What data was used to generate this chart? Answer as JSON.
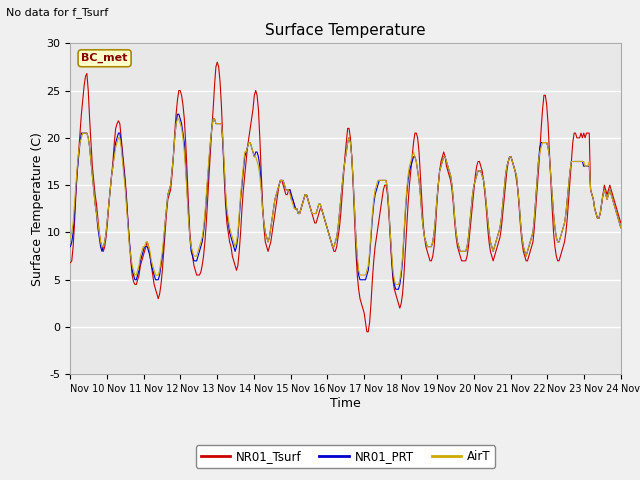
{
  "title": "Surface Temperature",
  "xlabel": "Time",
  "ylabel": "Surface Temperature (C)",
  "top_left_text": "No data for f_Tsurf",
  "box_label": "BC_met",
  "ylim": [
    -5,
    30
  ],
  "yticks": [
    -5,
    0,
    5,
    10,
    15,
    20,
    25,
    30
  ],
  "legend_labels": [
    "NR01_Tsurf",
    "NR01_PRT",
    "AirT"
  ],
  "legend_colors": [
    "#cc0000",
    "#0000cc",
    "#ccaa00"
  ],
  "background_color": "#e8e8e8",
  "grid_color": "#ffffff",
  "line_width": 0.8,
  "NR01_Tsurf": [
    6.8,
    7.0,
    8.5,
    11.0,
    14.0,
    16.5,
    18.5,
    20.5,
    22.5,
    24.0,
    25.5,
    26.5,
    26.8,
    25.0,
    22.0,
    19.5,
    17.0,
    15.5,
    14.0,
    13.0,
    11.5,
    10.0,
    9.0,
    8.5,
    8.0,
    8.5,
    9.5,
    11.0,
    13.0,
    14.5,
    16.0,
    17.5,
    19.5,
    21.0,
    21.5,
    21.8,
    21.5,
    20.0,
    18.5,
    17.0,
    15.5,
    13.5,
    11.0,
    9.0,
    7.0,
    5.5,
    4.8,
    4.5,
    4.5,
    5.0,
    5.5,
    6.5,
    7.0,
    7.5,
    8.0,
    8.5,
    9.0,
    8.5,
    7.5,
    6.5,
    5.5,
    4.5,
    4.0,
    3.5,
    3.0,
    3.5,
    4.5,
    6.0,
    8.0,
    10.0,
    12.0,
    13.5,
    14.0,
    14.5,
    16.0,
    18.0,
    20.5,
    22.5,
    24.0,
    25.0,
    25.0,
    24.5,
    23.5,
    22.0,
    19.5,
    16.5,
    13.0,
    10.0,
    8.5,
    7.5,
    6.5,
    6.0,
    5.5,
    5.5,
    5.5,
    5.8,
    6.5,
    7.5,
    9.0,
    11.0,
    13.5,
    16.0,
    18.5,
    21.0,
    23.0,
    25.5,
    27.5,
    28.0,
    27.5,
    26.0,
    23.5,
    20.0,
    16.0,
    13.0,
    11.0,
    10.0,
    9.0,
    8.5,
    7.5,
    7.0,
    6.5,
    6.0,
    6.5,
    8.0,
    10.0,
    12.5,
    14.5,
    16.0,
    17.5,
    19.0,
    20.0,
    21.0,
    22.0,
    23.0,
    24.5,
    25.0,
    24.5,
    23.0,
    20.0,
    16.5,
    13.0,
    10.5,
    9.0,
    8.5,
    8.0,
    8.5,
    9.0,
    10.0,
    11.0,
    12.0,
    13.0,
    14.0,
    15.0,
    15.5,
    15.5,
    15.0,
    14.5,
    14.0,
    14.0,
    14.5,
    14.5,
    13.5,
    13.5,
    13.0,
    12.5,
    12.5,
    12.0,
    12.0,
    12.5,
    13.0,
    13.5,
    14.0,
    14.0,
    13.5,
    13.0,
    12.5,
    12.0,
    11.5,
    11.0,
    11.0,
    11.5,
    12.0,
    12.5,
    12.5,
    12.0,
    11.5,
    11.0,
    10.5,
    10.0,
    9.5,
    9.0,
    8.5,
    8.0,
    8.0,
    8.5,
    9.5,
    10.5,
    12.0,
    14.0,
    16.0,
    18.0,
    19.5,
    21.0,
    21.0,
    20.0,
    18.0,
    15.0,
    11.5,
    8.0,
    5.5,
    4.0,
    3.0,
    2.5,
    2.0,
    1.5,
    0.5,
    -0.5,
    -0.5,
    0.5,
    2.5,
    5.0,
    7.0,
    8.5,
    9.5,
    10.5,
    11.5,
    12.5,
    13.5,
    14.5,
    15.0,
    15.0,
    14.0,
    12.0,
    9.5,
    7.0,
    5.0,
    4.0,
    3.5,
    3.0,
    2.5,
    2.0,
    2.5,
    3.5,
    5.5,
    8.0,
    10.5,
    13.0,
    15.0,
    16.5,
    18.0,
    19.5,
    20.5,
    20.5,
    20.0,
    18.5,
    16.0,
    13.5,
    11.0,
    9.5,
    8.5,
    8.0,
    7.5,
    7.0,
    7.0,
    7.5,
    8.5,
    10.5,
    13.0,
    15.0,
    16.5,
    17.5,
    18.0,
    18.5,
    18.0,
    17.0,
    16.5,
    16.0,
    15.5,
    14.5,
    13.0,
    11.0,
    9.5,
    8.5,
    8.0,
    7.5,
    7.0,
    7.0,
    7.0,
    7.0,
    7.5,
    8.5,
    10.0,
    11.5,
    13.0,
    14.5,
    16.0,
    17.0,
    17.5,
    17.5,
    17.0,
    16.5,
    15.5,
    14.0,
    12.5,
    10.5,
    9.0,
    8.0,
    7.5,
    7.0,
    7.5,
    8.0,
    8.5,
    9.0,
    9.5,
    10.5,
    12.0,
    13.5,
    15.0,
    16.5,
    17.5,
    18.0,
    18.0,
    17.5,
    17.0,
    16.5,
    15.5,
    14.5,
    12.5,
    10.5,
    9.0,
    8.0,
    7.5,
    7.0,
    7.0,
    7.5,
    8.0,
    8.5,
    9.0,
    10.5,
    12.5,
    14.5,
    16.5,
    18.5,
    21.0,
    23.0,
    24.5,
    24.5,
    23.5,
    21.5,
    18.5,
    15.5,
    12.5,
    10.0,
    8.5,
    7.5,
    7.0,
    7.0,
    7.5,
    8.0,
    8.5,
    9.0,
    10.0,
    11.5,
    13.5,
    15.5,
    17.5,
    19.5,
    20.5,
    20.5,
    20.0,
    20.0,
    20.0,
    20.5,
    20.0,
    20.5,
    20.0,
    20.5,
    20.5,
    20.5,
    14.5,
    14.0,
    13.5,
    12.5,
    12.0,
    11.5,
    11.5,
    12.0,
    13.0,
    14.0,
    15.0,
    14.5,
    14.0,
    14.5,
    15.0,
    14.5,
    14.0,
    13.5,
    13.0,
    12.5,
    12.0,
    11.5,
    11.0
  ],
  "NR01_PRT": [
    8.5,
    9.0,
    10.0,
    12.0,
    14.5,
    16.5,
    18.0,
    19.5,
    20.5,
    20.5,
    20.5,
    20.5,
    20.5,
    20.0,
    19.0,
    17.5,
    16.0,
    14.5,
    13.0,
    12.0,
    10.5,
    9.5,
    8.5,
    8.0,
    8.5,
    9.0,
    10.0,
    11.5,
    13.0,
    14.5,
    16.0,
    17.0,
    18.5,
    19.5,
    20.0,
    20.5,
    20.5,
    19.5,
    18.0,
    16.5,
    15.0,
    13.0,
    11.0,
    9.0,
    7.5,
    6.0,
    5.5,
    5.0,
    5.0,
    5.5,
    6.0,
    7.0,
    7.5,
    8.0,
    8.5,
    8.5,
    8.5,
    8.0,
    7.5,
    6.5,
    6.0,
    5.5,
    5.0,
    5.0,
    5.0,
    5.5,
    6.5,
    7.5,
    9.0,
    11.0,
    12.5,
    14.0,
    14.5,
    15.0,
    16.5,
    18.0,
    20.0,
    21.5,
    22.5,
    22.5,
    22.0,
    21.5,
    20.5,
    19.5,
    17.0,
    14.5,
    12.0,
    9.5,
    8.0,
    7.5,
    7.0,
    7.0,
    7.0,
    7.5,
    8.0,
    8.5,
    9.0,
    10.0,
    11.5,
    13.5,
    15.5,
    17.5,
    19.5,
    21.0,
    22.0,
    22.0,
    21.5,
    21.5,
    21.5,
    21.5,
    21.5,
    19.5,
    17.0,
    14.0,
    12.0,
    11.0,
    10.0,
    9.5,
    9.0,
    8.5,
    8.0,
    8.5,
    9.5,
    11.5,
    13.5,
    15.0,
    16.5,
    18.0,
    18.5,
    19.0,
    19.5,
    19.5,
    19.0,
    18.5,
    18.0,
    18.5,
    18.5,
    18.0,
    17.0,
    15.0,
    12.5,
    11.0,
    10.0,
    9.5,
    9.0,
    9.5,
    10.5,
    11.5,
    12.5,
    13.5,
    14.0,
    14.5,
    15.0,
    15.5,
    15.5,
    15.5,
    15.0,
    14.5,
    14.5,
    14.5,
    14.5,
    14.0,
    13.5,
    13.0,
    12.5,
    12.5,
    12.0,
    12.0,
    12.5,
    13.0,
    13.5,
    14.0,
    14.0,
    13.5,
    13.0,
    12.5,
    12.0,
    12.0,
    12.0,
    12.0,
    12.5,
    13.0,
    13.0,
    12.5,
    12.0,
    11.5,
    11.0,
    10.5,
    10.0,
    9.5,
    9.0,
    8.5,
    8.5,
    9.0,
    9.5,
    10.5,
    12.0,
    13.5,
    15.0,
    16.5,
    17.5,
    18.5,
    19.5,
    20.0,
    19.5,
    18.0,
    15.5,
    12.5,
    9.5,
    7.0,
    5.5,
    5.0,
    5.0,
    5.0,
    5.0,
    5.0,
    5.5,
    6.0,
    7.5,
    9.5,
    11.5,
    13.0,
    14.0,
    14.5,
    15.0,
    15.5,
    15.5,
    15.5,
    15.5,
    15.5,
    15.5,
    14.5,
    12.5,
    10.0,
    7.5,
    5.5,
    4.5,
    4.0,
    4.0,
    4.0,
    4.5,
    5.5,
    7.0,
    9.5,
    12.0,
    14.0,
    15.5,
    16.5,
    17.0,
    17.5,
    18.0,
    18.0,
    17.5,
    16.5,
    15.5,
    14.0,
    12.0,
    10.5,
    9.5,
    9.0,
    8.5,
    8.5,
    8.5,
    8.5,
    9.0,
    10.0,
    11.5,
    13.5,
    15.0,
    16.5,
    17.0,
    17.5,
    18.0,
    18.0,
    17.5,
    17.0,
    16.5,
    16.0,
    15.0,
    13.5,
    11.5,
    10.0,
    9.0,
    8.5,
    8.0,
    8.0,
    8.0,
    8.0,
    8.0,
    8.5,
    9.5,
    11.0,
    12.5,
    14.0,
    15.0,
    15.5,
    16.0,
    16.5,
    16.5,
    16.5,
    16.0,
    15.5,
    14.5,
    13.0,
    11.5,
    10.0,
    9.0,
    8.5,
    8.0,
    8.5,
    9.0,
    9.5,
    10.0,
    10.5,
    11.5,
    13.0,
    14.5,
    16.0,
    17.0,
    17.5,
    18.0,
    18.0,
    17.5,
    17.0,
    16.5,
    16.0,
    14.5,
    13.0,
    11.0,
    9.5,
    8.5,
    8.0,
    7.5,
    8.0,
    8.5,
    9.0,
    9.5,
    10.0,
    11.5,
    13.5,
    15.5,
    17.5,
    19.0,
    19.5,
    19.5,
    19.5,
    19.5,
    19.5,
    19.0,
    18.0,
    16.0,
    14.0,
    12.0,
    10.5,
    9.5,
    9.0,
    9.0,
    9.5,
    10.0,
    10.5,
    11.0,
    12.0,
    13.5,
    15.0,
    16.5,
    17.5,
    17.5,
    17.5,
    17.5,
    17.5,
    17.5,
    17.5,
    17.5,
    17.5,
    17.0,
    17.0,
    17.0,
    17.0,
    17.0,
    14.5,
    14.0,
    13.5,
    12.5,
    12.0,
    11.5,
    11.5,
    12.0,
    13.0,
    14.0,
    14.5,
    14.0,
    13.5,
    14.0,
    14.5,
    14.0,
    13.5,
    13.0,
    12.5,
    12.0,
    11.5,
    11.0,
    10.5
  ],
  "AirT": [
    9.5,
    10.0,
    11.0,
    13.0,
    15.0,
    17.0,
    18.5,
    19.5,
    20.0,
    20.5,
    20.5,
    20.5,
    20.5,
    20.0,
    19.0,
    17.5,
    16.0,
    14.5,
    13.0,
    12.0,
    11.0,
    10.0,
    9.0,
    8.5,
    8.5,
    9.0,
    10.0,
    11.5,
    13.0,
    14.5,
    16.0,
    17.0,
    18.0,
    19.0,
    19.5,
    20.0,
    20.0,
    19.0,
    17.5,
    16.0,
    14.5,
    12.5,
    10.5,
    8.5,
    7.5,
    6.5,
    6.0,
    5.5,
    5.5,
    6.0,
    6.5,
    7.5,
    8.0,
    8.5,
    8.5,
    9.0,
    9.0,
    8.5,
    8.0,
    7.0,
    6.5,
    6.0,
    5.5,
    5.5,
    5.5,
    6.0,
    7.0,
    8.0,
    9.5,
    11.0,
    12.5,
    14.0,
    14.5,
    15.0,
    16.5,
    18.0,
    20.0,
    21.5,
    22.0,
    22.0,
    21.5,
    21.0,
    20.0,
    18.5,
    16.5,
    14.0,
    11.5,
    9.5,
    8.5,
    8.0,
    7.5,
    7.5,
    7.5,
    8.0,
    8.5,
    9.0,
    9.5,
    10.5,
    12.0,
    14.0,
    16.0,
    18.0,
    19.5,
    21.0,
    22.0,
    22.0,
    21.5,
    21.5,
    21.5,
    21.5,
    21.5,
    20.0,
    17.5,
    14.5,
    12.5,
    11.5,
    10.5,
    10.0,
    9.5,
    9.0,
    8.5,
    9.0,
    10.0,
    12.0,
    14.0,
    15.5,
    17.0,
    18.5,
    18.5,
    19.0,
    19.5,
    19.5,
    19.0,
    18.5,
    18.0,
    18.0,
    17.5,
    17.0,
    16.0,
    14.5,
    12.5,
    11.0,
    10.0,
    9.5,
    9.0,
    9.5,
    10.5,
    11.5,
    12.5,
    13.5,
    14.0,
    14.5,
    15.0,
    15.5,
    15.5,
    15.5,
    15.0,
    14.5,
    14.5,
    14.5,
    14.0,
    13.5,
    13.0,
    12.5,
    12.5,
    12.5,
    12.0,
    12.0,
    12.5,
    13.0,
    13.5,
    14.0,
    14.0,
    13.5,
    13.0,
    12.5,
    12.0,
    12.0,
    12.0,
    12.0,
    12.5,
    13.0,
    13.0,
    12.5,
    12.0,
    11.5,
    11.0,
    10.5,
    10.0,
    9.5,
    9.0,
    8.5,
    8.5,
    9.0,
    9.5,
    10.5,
    12.0,
    13.5,
    15.0,
    16.5,
    17.5,
    18.5,
    19.5,
    20.0,
    19.5,
    18.0,
    15.5,
    12.5,
    9.5,
    7.5,
    6.0,
    5.5,
    5.5,
    5.5,
    5.5,
    5.5,
    6.0,
    6.5,
    8.0,
    10.0,
    12.0,
    13.5,
    14.5,
    15.0,
    15.5,
    15.5,
    15.5,
    15.5,
    15.5,
    15.5,
    15.5,
    14.5,
    12.5,
    10.0,
    8.0,
    6.0,
    5.0,
    4.5,
    4.5,
    4.5,
    5.0,
    6.0,
    7.5,
    10.0,
    12.5,
    14.5,
    16.0,
    17.0,
    17.5,
    18.0,
    18.5,
    18.0,
    17.5,
    16.5,
    15.5,
    14.0,
    12.0,
    10.5,
    9.5,
    9.0,
    8.5,
    8.5,
    8.5,
    8.5,
    9.0,
    10.0,
    11.5,
    13.5,
    15.0,
    16.5,
    17.0,
    17.5,
    18.0,
    18.0,
    17.5,
    17.0,
    16.5,
    16.0,
    15.0,
    13.5,
    11.5,
    10.0,
    9.0,
    8.5,
    8.0,
    8.0,
    8.0,
    8.0,
    8.0,
    8.5,
    9.5,
    11.0,
    12.5,
    14.0,
    15.0,
    15.5,
    16.0,
    16.5,
    16.5,
    16.5,
    16.0,
    15.5,
    14.5,
    13.0,
    11.5,
    10.0,
    9.0,
    8.5,
    8.0,
    8.5,
    9.0,
    9.5,
    10.0,
    10.5,
    11.5,
    13.0,
    14.5,
    16.0,
    17.0,
    17.5,
    18.0,
    18.0,
    17.5,
    17.0,
    16.5,
    16.0,
    14.5,
    13.0,
    11.0,
    9.5,
    8.5,
    8.0,
    7.5,
    8.0,
    8.5,
    9.0,
    9.5,
    10.0,
    11.5,
    13.5,
    15.5,
    17.5,
    18.5,
    19.0,
    19.5,
    19.5,
    19.5,
    19.5,
    19.0,
    18.0,
    16.0,
    14.0,
    12.0,
    10.5,
    9.5,
    9.0,
    9.0,
    9.5,
    10.0,
    10.5,
    11.0,
    12.0,
    13.5,
    15.0,
    16.5,
    17.5,
    17.5,
    17.5,
    17.5,
    17.5,
    17.5,
    17.5,
    17.5,
    17.5,
    17.5,
    17.0,
    17.0,
    17.0,
    17.5,
    14.5,
    14.0,
    13.5,
    12.5,
    12.0,
    11.5,
    11.5,
    12.0,
    13.0,
    14.0,
    14.5,
    14.0,
    13.5,
    14.0,
    14.5,
    14.0,
    13.5,
    13.0,
    12.5,
    12.0,
    11.5,
    11.0,
    10.5
  ]
}
